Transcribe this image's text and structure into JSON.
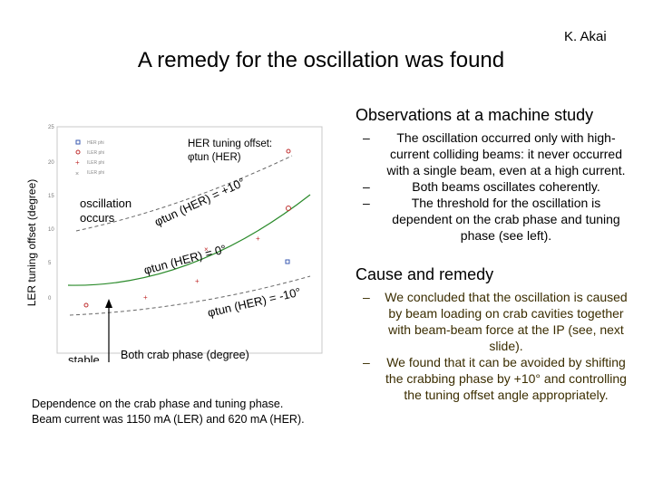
{
  "slide": {
    "author": "K. Akai",
    "title": "A remedy for the oscillation was found",
    "observations_heading": "Observations at a machine study",
    "observations": [
      "The oscillation occurred only with high-current colliding beams: it never occurred with a single beam, even at a high current.",
      "Both beams oscillates coherently.",
      "The threshold for the oscillation is dependent on the crab phase and tuning phase (see left)."
    ],
    "cause_heading": "Cause and remedy",
    "causes": [
      "We concluded that the oscillation is caused by beam loading on crab cavities together with beam-beam force at the IP (see, next slide).",
      "We found that it can be avoided by shifting the crabbing phase by +10° and controlling the tuning offset angle appropriately."
    ],
    "bullet_dash": "–",
    "caption_line1": "Dependence on the crab phase and tuning phase.",
    "caption_line2": "Beam current was 1150 mA (LER) and 620 mA (HER)."
  },
  "chart_data": {
    "type": "scatter",
    "ylabel": "LER tuning offset (degree)",
    "xlabel": "Both crab phase (degree)",
    "yticks": [
      "25",
      "20",
      "15",
      "10",
      "5",
      "0"
    ],
    "ylim": [
      -5,
      25
    ],
    "legend_entries": [
      "HER phi",
      "ILER phi",
      "ILER phi",
      "ILER phi"
    ],
    "annotations": {
      "her_offset_line1": "HER tuning offset:",
      "her_offset_line2": "φtun (HER)",
      "oscillation_line1": "oscillation",
      "oscillation_line2": "occurs",
      "stable": "stable",
      "curve_plus10": "φtun (HER) = +10°",
      "curve_zero": "φtun (HER) = 0°",
      "curve_minus10": "φtun (HER) = -10°"
    }
  }
}
